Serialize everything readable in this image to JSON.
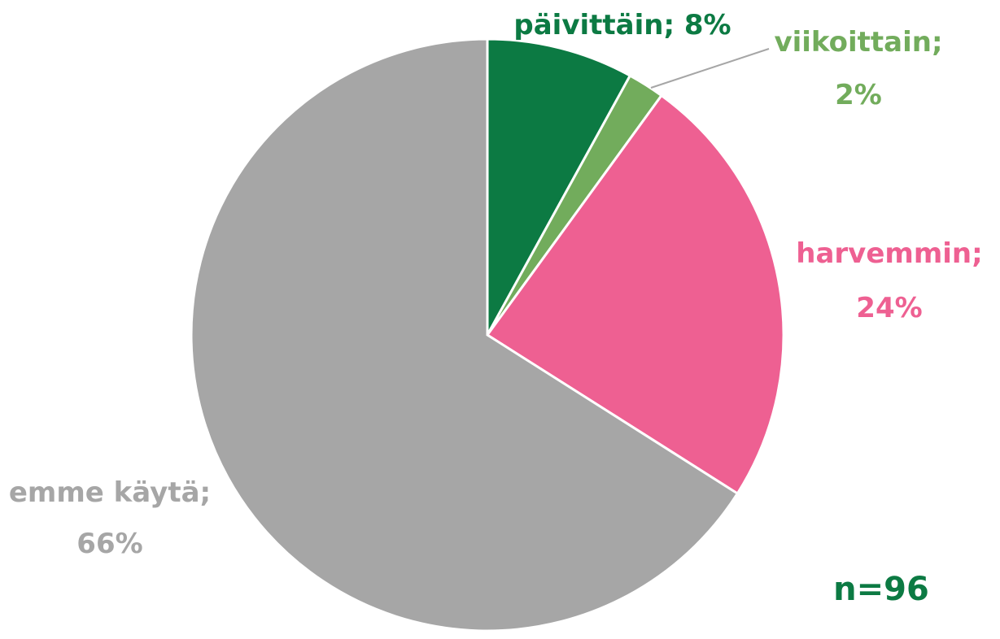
{
  "chart_data": {
    "type": "pie",
    "slices": [
      {
        "label": "päivittäin",
        "value": 8,
        "display": "päivittäin; 8%",
        "color": "#0c7a43"
      },
      {
        "label": "viikoittain",
        "value": 2,
        "display_line1": "viikoittain;",
        "display_line2": "2%",
        "color": "#72ac5c"
      },
      {
        "label": "harvemmin",
        "value": 24,
        "display_line1": "harvemmin;",
        "display_line2": "24%",
        "color": "#ee6092"
      },
      {
        "label": "emme käytä",
        "value": 66,
        "display_line1": "emme käytä;",
        "display_line2": "66%",
        "color": "#a6a6a6"
      }
    ],
    "annotation": "n=96",
    "annotation_color": "#0c7a43",
    "legend": "none"
  }
}
